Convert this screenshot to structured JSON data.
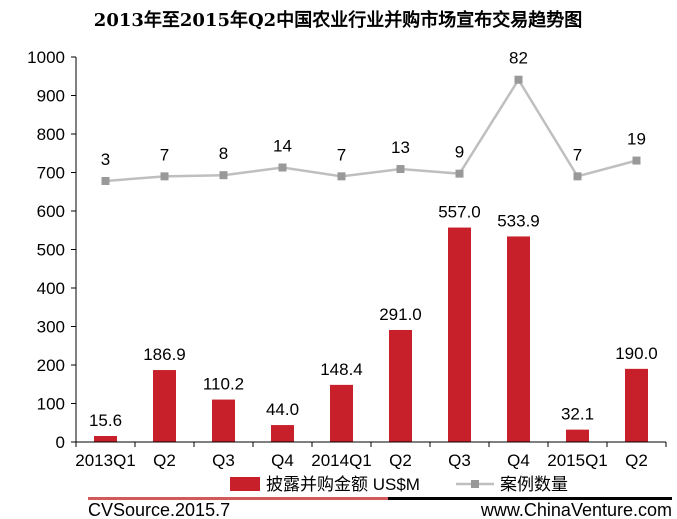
{
  "chart_data": {
    "type": "bar",
    "title": "2013年至2015年Q2中国农业行业并购市场宣布交易趋势图",
    "categories": [
      "2013Q1",
      "Q2",
      "Q3",
      "Q4",
      "2014Q1",
      "Q2",
      "Q3",
      "Q4",
      "2015Q1",
      "Q2"
    ],
    "ylim": [
      0,
      1000
    ],
    "yticks": [
      0,
      100,
      200,
      300,
      400,
      500,
      600,
      700,
      800,
      900,
      1000
    ],
    "series": [
      {
        "name": "披露并购金额 US$M",
        "type": "bar",
        "color": "#c8202a",
        "values": [
          15.6,
          186.9,
          110.2,
          44.0,
          148.4,
          291.0,
          557.0,
          533.9,
          32.1,
          190.0
        ],
        "labels": [
          "15.6",
          "186.9",
          "110.2",
          "44.0",
          "148.4",
          "291.0",
          "557.0",
          "533.9",
          "32.1",
          "190.0"
        ]
      },
      {
        "name": "案例数量",
        "type": "line",
        "color": "#bfbfbf",
        "marker_color": "#999999",
        "values": [
          3,
          7,
          8,
          14,
          7,
          13,
          9,
          82,
          7,
          19
        ],
        "labels": [
          "3",
          "7",
          "8",
          "14",
          "7",
          "13",
          "9",
          "82",
          "7",
          "19"
        ],
        "plotted_y": [
          678,
          690,
          693,
          713,
          690,
          709,
          697,
          941,
          690,
          731
        ]
      }
    ],
    "legend_position": "bottom",
    "grid": false
  },
  "footer": {
    "source": "CVSource.2015.7",
    "website": "www.ChinaVenture.com"
  },
  "colors": {
    "bar": "#c8202a",
    "line": "#bfbfbf",
    "footer_left_rule": "#d25a5a",
    "footer_right_rule": "#000000"
  }
}
